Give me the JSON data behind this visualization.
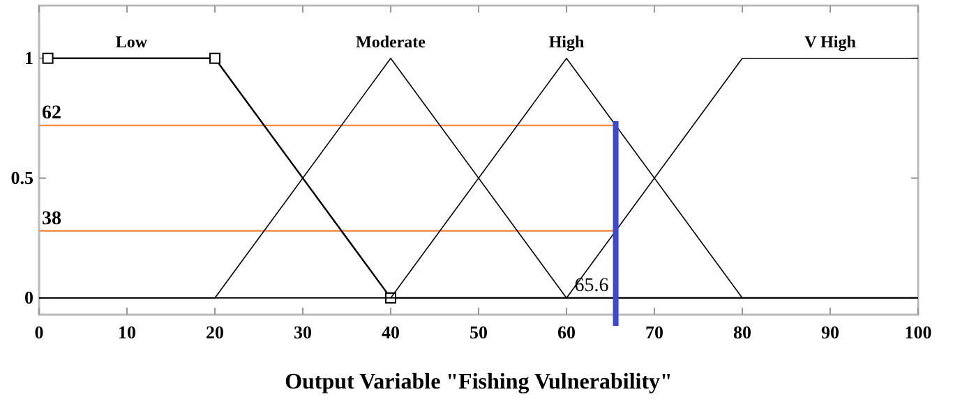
{
  "chart_data": {
    "type": "line",
    "xlabel": "Output Variable \"Fishing Vulnerability\"",
    "xlim": [
      0,
      100
    ],
    "xticks": [
      0,
      10,
      20,
      30,
      40,
      50,
      60,
      70,
      80,
      90,
      100
    ],
    "ylim": [
      -0.07,
      1.22
    ],
    "yticks": [
      0,
      0.5,
      1
    ],
    "series": [
      {
        "name": "Low",
        "color": "#000000",
        "x": [
          1,
          20,
          40,
          100
        ],
        "values": [
          1,
          1,
          0,
          0
        ],
        "marker": "square"
      },
      {
        "name": "Moderate",
        "color": "#000000",
        "x": [
          0,
          20,
          40,
          60,
          100
        ],
        "values": [
          0,
          0,
          1,
          0,
          0
        ]
      },
      {
        "name": "High",
        "color": "#000000",
        "x": [
          40,
          60,
          80
        ],
        "values": [
          0,
          1,
          0
        ]
      },
      {
        "name": "V High",
        "color": "#000000",
        "x": [
          0,
          60,
          80,
          100
        ],
        "values": [
          0,
          0,
          1,
          1
        ]
      }
    ],
    "ref_lines": [
      {
        "axis": "y",
        "value": 0.72,
        "color": "#f58a42"
      },
      {
        "axis": "y",
        "value": 0.28,
        "color": "#f58a42"
      },
      {
        "axis": "x",
        "value": 65.6,
        "label": "65.6",
        "color": "#3f48cc"
      }
    ],
    "annotations": [
      {
        "text": "62",
        "x": 0,
        "y": 0.72
      },
      {
        "text": "38",
        "x": 0,
        "y": 0.28
      }
    ],
    "grid": false
  }
}
